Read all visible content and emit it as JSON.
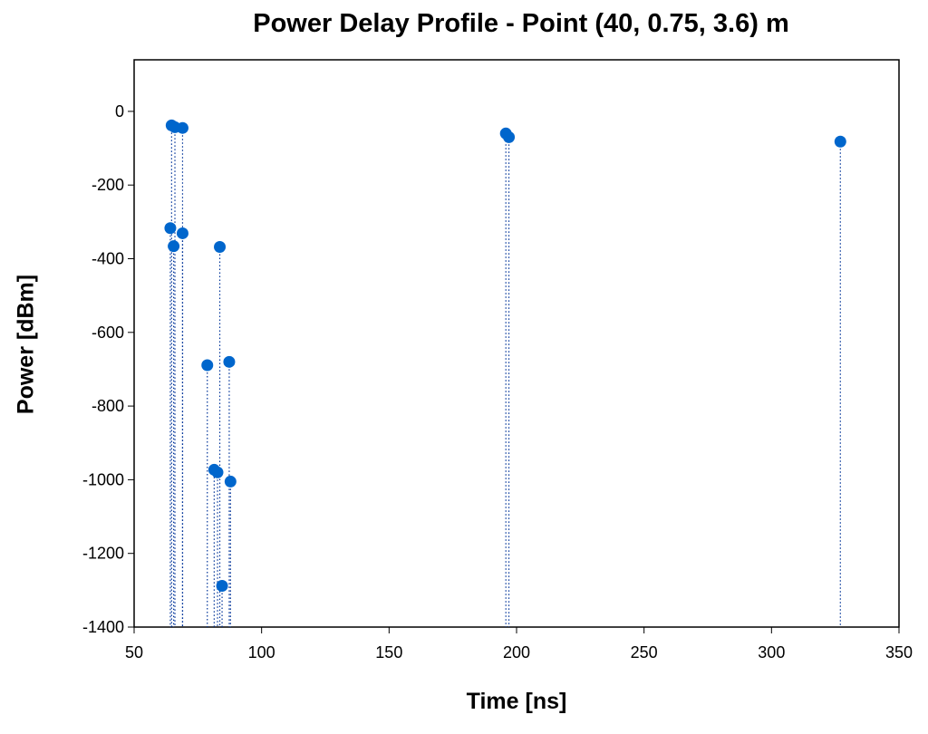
{
  "chart_data": {
    "type": "scatter",
    "title": "Power Delay Profile - Point (40, 0.75, 3.6) m",
    "xlabel": "Time [ns]",
    "ylabel": "Power [dBm]",
    "xlim": [
      50,
      350
    ],
    "ylim": [
      -1400,
      140
    ],
    "xticks": [
      50,
      100,
      150,
      200,
      250,
      300,
      350
    ],
    "yticks": [
      0,
      -200,
      -400,
      -600,
      -800,
      -1000,
      -1200,
      -1400
    ],
    "grid": false,
    "stem_lines": true,
    "marker_color": "#0066cc",
    "line_color": "#003399",
    "series": [
      {
        "x": [
          64.7,
          66.0,
          69.0,
          64.2,
          69.0,
          65.5,
          83.6,
          78.7,
          87.3,
          81.4,
          82.7,
          87.8,
          84.5,
          195.8,
          197.0,
          327.0
        ],
        "y": [
          -38,
          -43,
          -45,
          -317,
          -331,
          -366,
          -368,
          -689,
          -680,
          -973,
          -980,
          -1005,
          -1288,
          -60,
          -70,
          -82
        ]
      }
    ]
  }
}
